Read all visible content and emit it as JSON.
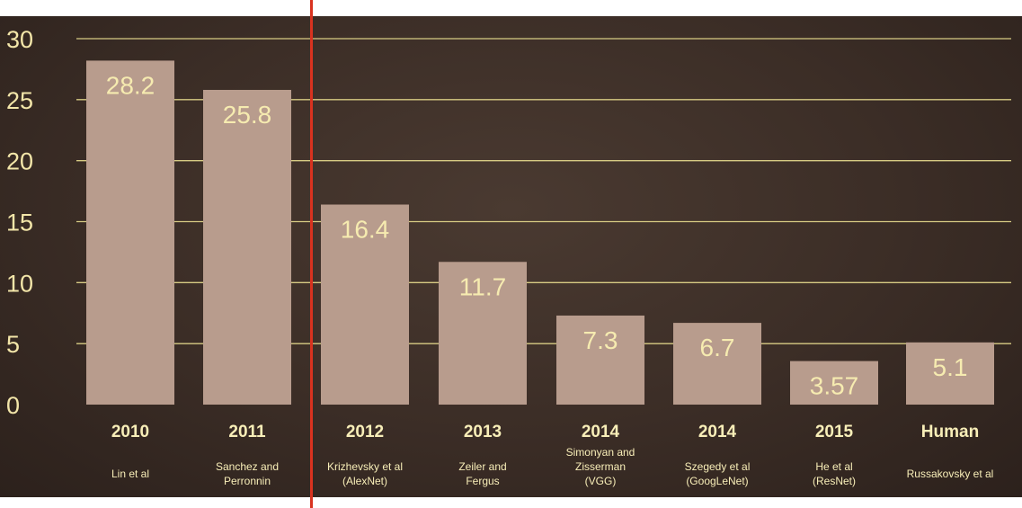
{
  "chart_data": {
    "type": "bar",
    "categories": [
      "2010",
      "2011",
      "2012",
      "2013",
      "2014",
      "2014",
      "2015",
      "Human"
    ],
    "sublabels": [
      [
        "Lin et al"
      ],
      [
        "Sanchez and",
        "Perronnin"
      ],
      [
        "Krizhevsky et al",
        "(AlexNet)"
      ],
      [
        "Zeiler and",
        "Fergus"
      ],
      [
        "Simonyan and",
        "Zisserman",
        "(VGG)"
      ],
      [
        "Szegedy et al",
        "(GoogLeNet)"
      ],
      [
        "He et al",
        "(ResNet)"
      ],
      [
        "Russakovsky et al"
      ]
    ],
    "values": [
      28.2,
      25.8,
      16.4,
      11.7,
      7.3,
      6.7,
      3.57,
      5.1
    ],
    "value_labels": [
      "28.2",
      "25.8",
      "16.4",
      "11.7",
      "7.3",
      "6.7",
      "3.57",
      "5.1"
    ],
    "yticks": [
      0,
      5,
      10,
      15,
      20,
      25,
      30
    ],
    "ylim": [
      0,
      30
    ],
    "grid": true,
    "title": "",
    "xlabel": "",
    "ylabel": "",
    "colors": {
      "background": "#3b2d26",
      "bar": "#b89c8d",
      "text": "#f6ebb0",
      "grid": "#d8cc84",
      "divider": "#d9321f"
    }
  }
}
